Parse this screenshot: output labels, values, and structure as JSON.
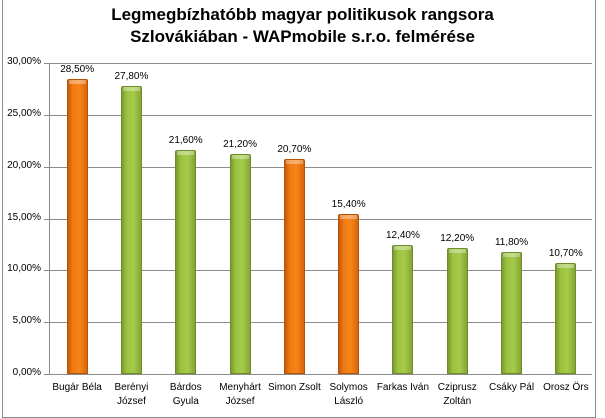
{
  "chart_data": {
    "type": "bar",
    "title": "Legmegbízhatóbb magyar politikusok rangsora Szlovákiában - WAPmobile s.r.o. felmérése",
    "title_lines": [
      "Legmegbízhatóbb magyar politikusok rangsora",
      "Szlovákiában - WAPmobile s.r.o. felmérése"
    ],
    "xlabel": "",
    "ylabel": "",
    "ylim": [
      0,
      30
    ],
    "grid": true,
    "legend": "none",
    "yticks": [
      "0,00%",
      "5,00%",
      "10,00%",
      "15,00%",
      "20,00%",
      "25,00%",
      "30,00%"
    ],
    "categories": [
      "Bugár Béla",
      "Berényi József",
      "Bárdos Gyula",
      "Menyhárt József",
      "Simon Zsolt",
      "Solymos László",
      "Farkas Iván",
      "Cziprusz Zoltán",
      "Csáky Pál",
      "Orosz Örs"
    ],
    "category_lines": [
      [
        "Bugár Béla"
      ],
      [
        "Berényi",
        "József"
      ],
      [
        "Bárdos",
        "Gyula"
      ],
      [
        "Menyhárt",
        "József"
      ],
      [
        "Simon Zsolt"
      ],
      [
        "Solymos",
        "László"
      ],
      [
        "Farkas Iván"
      ],
      [
        "Cziprusz",
        "Zoltán"
      ],
      [
        "Csáky Pál"
      ],
      [
        "Orosz Örs"
      ]
    ],
    "values": [
      28.5,
      27.8,
      21.6,
      21.2,
      20.7,
      15.4,
      12.4,
      12.2,
      11.8,
      10.7
    ],
    "value_labels": [
      "28,50%",
      "27,80%",
      "21,60%",
      "21,20%",
      "20,70%",
      "15,40%",
      "12,40%",
      "12,20%",
      "11,80%",
      "10,70%"
    ],
    "bar_colors": [
      "orange",
      "green",
      "green",
      "green",
      "orange",
      "orange",
      "green",
      "green",
      "green",
      "green"
    ],
    "colors": {
      "orange": "#f07a12",
      "green": "#9cc240"
    }
  }
}
